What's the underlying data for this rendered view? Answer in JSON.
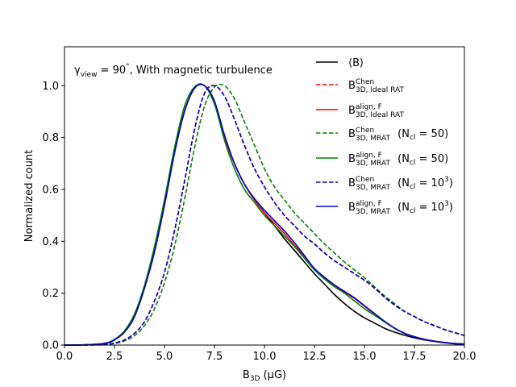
{
  "chart_data": {
    "type": "line",
    "title": "",
    "annotation": {
      "prefix": "γ",
      "sub": "view",
      "mid": " = 90",
      "deg": "°",
      "suffix": ", With magnetic turbulence"
    },
    "xlabel": "B₃D (μG)",
    "xlabel_parts": {
      "base": "B",
      "sub": "3D",
      "rest": " (μG)"
    },
    "ylabel": "Normalized count",
    "xlim": [
      0,
      20
    ],
    "ylim": [
      0,
      1.15
    ],
    "xticks": [
      0,
      2.5,
      5,
      7.5,
      10,
      12.5,
      15,
      17.5,
      20
    ],
    "xtick_labels": [
      "0.0",
      "2.5",
      "5.0",
      "7.5",
      "10.0",
      "12.5",
      "15.0",
      "17.5",
      "20.0"
    ],
    "yticks": [
      0,
      0.2,
      0.4,
      0.6,
      0.8,
      1.0
    ],
    "ytick_labels": [
      "0.0",
      "0.2",
      "0.4",
      "0.6",
      "0.8",
      "1.0"
    ],
    "legend_position": "top-right",
    "x": [
      0,
      1,
      2,
      2.5,
      3,
      3.5,
      4,
      4.5,
      5,
      5.5,
      6,
      6.5,
      7,
      7.5,
      8,
      8.5,
      9,
      9.5,
      10,
      10.5,
      11,
      11.5,
      12,
      12.5,
      13,
      13.5,
      14,
      14.5,
      15,
      15.5,
      16,
      16.5,
      17,
      17.5,
      18,
      18.5,
      19,
      19.5,
      20
    ],
    "series": [
      {
        "name": "<B>",
        "legend": {
          "text": "⟨B⟩"
        },
        "color": "#000000",
        "dash": "solid",
        "values": [
          0,
          0.001,
          0.006,
          0.02,
          0.05,
          0.11,
          0.22,
          0.36,
          0.54,
          0.74,
          0.9,
          0.99,
          1.0,
          0.93,
          0.8,
          0.7,
          0.62,
          0.56,
          0.51,
          0.46,
          0.41,
          0.365,
          0.32,
          0.275,
          0.235,
          0.195,
          0.16,
          0.13,
          0.105,
          0.085,
          0.065,
          0.05,
          0.038,
          0.028,
          0.02,
          0.014,
          0.009,
          0.005,
          0.003
        ]
      },
      {
        "name": "B3D Chen Ideal RAT",
        "legend": {
          "base": "B",
          "sup": "Chen",
          "sub": "3D, Ideal RAT",
          "tail": ""
        },
        "color": "#ff0000",
        "dash": "dashed",
        "values": [
          0,
          0,
          0.002,
          0.008,
          0.02,
          0.045,
          0.09,
          0.17,
          0.28,
          0.44,
          0.63,
          0.83,
          0.97,
          1.0,
          0.96,
          0.87,
          0.77,
          0.68,
          0.61,
          0.55,
          0.5,
          0.46,
          0.42,
          0.39,
          0.355,
          0.325,
          0.3,
          0.275,
          0.25,
          0.22,
          0.185,
          0.155,
          0.13,
          0.11,
          0.09,
          0.075,
          0.06,
          0.048,
          0.037
        ]
      },
      {
        "name": "B3D align F Ideal RAT",
        "legend": {
          "base": "B",
          "sup": "align, F",
          "sub": "3D, Ideal RAT",
          "tail": ""
        },
        "color": "#ff0000",
        "dash": "solid",
        "values": [
          0,
          0.001,
          0.006,
          0.02,
          0.05,
          0.11,
          0.22,
          0.36,
          0.54,
          0.74,
          0.9,
          0.99,
          1.0,
          0.94,
          0.8,
          0.7,
          0.62,
          0.56,
          0.51,
          0.47,
          0.43,
          0.385,
          0.34,
          0.29,
          0.26,
          0.23,
          0.205,
          0.18,
          0.15,
          0.12,
          0.09,
          0.065,
          0.045,
          0.032,
          0.022,
          0.015,
          0.01,
          0.006,
          0.004
        ]
      },
      {
        "name": "B3D Chen MRAT Ncl=50",
        "legend": {
          "base": "B",
          "sup": "Chen",
          "sub": "3D, MRAT",
          "tail": " (N",
          "tailsub": "cl",
          "tail2": " = 50)"
        },
        "color": "#008000",
        "dash": "dashed",
        "values": [
          0,
          0,
          0.001,
          0.006,
          0.016,
          0.036,
          0.075,
          0.14,
          0.24,
          0.38,
          0.56,
          0.76,
          0.92,
          0.995,
          1.0,
          0.95,
          0.86,
          0.77,
          0.68,
          0.61,
          0.56,
          0.51,
          0.47,
          0.43,
          0.39,
          0.355,
          0.32,
          0.29,
          0.26,
          0.225,
          0.19,
          0.16,
          0.13,
          0.11,
          0.09,
          0.075,
          0.06,
          0.048,
          0.037
        ]
      },
      {
        "name": "B3D align F MRAT Ncl=50",
        "legend": {
          "base": "B",
          "sup": "align, F",
          "sub": "3D, MRAT",
          "tail": " (N",
          "tailsub": "cl",
          "tail2": " = 50)"
        },
        "color": "#008000",
        "dash": "solid",
        "values": [
          0,
          0.001,
          0.007,
          0.022,
          0.055,
          0.12,
          0.23,
          0.38,
          0.56,
          0.76,
          0.92,
          0.995,
          1.0,
          0.93,
          0.79,
          0.68,
          0.6,
          0.55,
          0.5,
          0.46,
          0.42,
          0.38,
          0.335,
          0.29,
          0.255,
          0.225,
          0.2,
          0.17,
          0.14,
          0.115,
          0.09,
          0.065,
          0.045,
          0.032,
          0.022,
          0.015,
          0.01,
          0.006,
          0.004
        ]
      },
      {
        "name": "B3D Chen MRAT Ncl=10^3",
        "legend": {
          "base": "B",
          "sup": "Chen",
          "sub": "3D, MRAT",
          "tail": " (N",
          "tailsub": "cl",
          "tail2": " = 10",
          "tailsup": "3",
          "tail3": ")"
        },
        "color": "#0000cc",
        "dash": "dashed",
        "values": [
          0,
          0,
          0.002,
          0.008,
          0.02,
          0.045,
          0.09,
          0.17,
          0.28,
          0.44,
          0.63,
          0.83,
          0.97,
          1.0,
          0.96,
          0.87,
          0.77,
          0.68,
          0.61,
          0.55,
          0.5,
          0.46,
          0.42,
          0.39,
          0.355,
          0.325,
          0.3,
          0.275,
          0.25,
          0.22,
          0.185,
          0.155,
          0.13,
          0.11,
          0.09,
          0.075,
          0.06,
          0.048,
          0.037
        ]
      },
      {
        "name": "B3D align F MRAT Ncl=10^3",
        "legend": {
          "base": "B",
          "sup": "align, F",
          "sub": "3D, MRAT",
          "tail": " (N",
          "tailsub": "cl",
          "tail2": " = 10",
          "tailsup": "3",
          "tail3": ")"
        },
        "color": "#0000cc",
        "dash": "solid",
        "values": [
          0,
          0.001,
          0.006,
          0.02,
          0.05,
          0.11,
          0.22,
          0.36,
          0.54,
          0.74,
          0.9,
          0.99,
          1.0,
          0.94,
          0.81,
          0.7,
          0.62,
          0.565,
          0.52,
          0.48,
          0.44,
          0.395,
          0.345,
          0.295,
          0.262,
          0.232,
          0.207,
          0.182,
          0.152,
          0.122,
          0.092,
          0.066,
          0.046,
          0.032,
          0.022,
          0.015,
          0.01,
          0.006,
          0.004
        ]
      }
    ]
  }
}
